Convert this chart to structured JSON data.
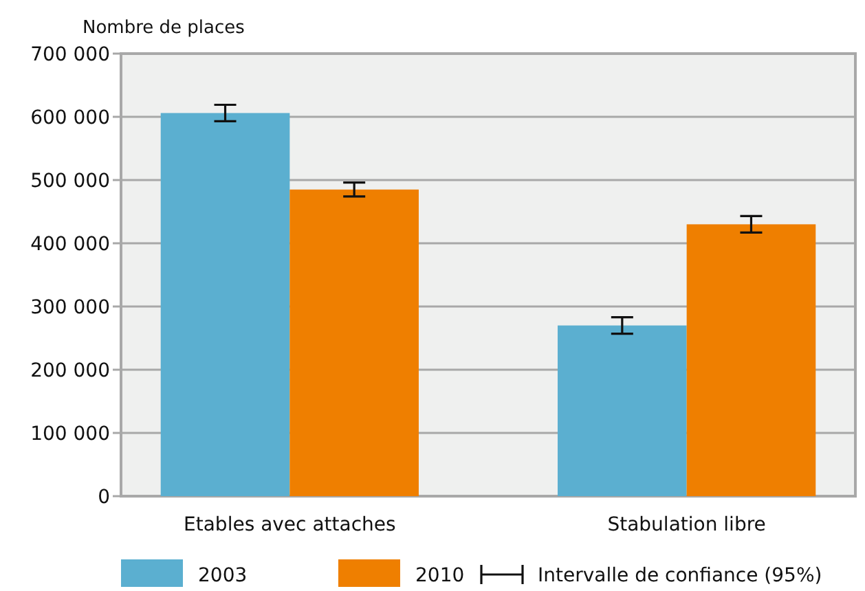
{
  "chart_data": {
    "type": "bar",
    "ylabel": "Nombre de places",
    "categories": [
      "Etables avec attaches",
      "Stabulation libre"
    ],
    "series": [
      {
        "name": "2003",
        "color": "#5bafd0",
        "values": [
          606000,
          270000
        ],
        "errors": [
          13000,
          13000
        ]
      },
      {
        "name": "2010",
        "color": "#ef7f00",
        "values": [
          485000,
          430000
        ],
        "errors": [
          11000,
          13000
        ]
      }
    ],
    "ylim": [
      0,
      700000
    ],
    "yticks": [
      0,
      {
        "value": 100000,
        "label": "100 000"
      },
      {
        "value": 200000,
        "label": "200 000"
      },
      {
        "value": 300000,
        "label": "300 000"
      },
      {
        "value": 400000,
        "label": "400 000"
      },
      {
        "value": 500000,
        "label": "500 000"
      },
      {
        "value": 600000,
        "label": "600 000"
      },
      {
        "value": 700000,
        "label": "700 000"
      }
    ],
    "grid": "y",
    "legend": "bottom",
    "annotations": [
      "Intervalle de confiance (95%)"
    ]
  }
}
